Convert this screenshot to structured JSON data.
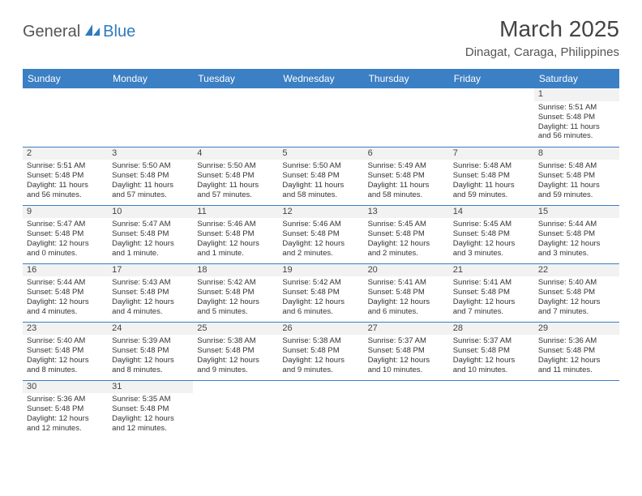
{
  "logo": {
    "general": "General",
    "blue": "Blue"
  },
  "title": "March 2025",
  "location": "Dinagat, Caraga, Philippines",
  "weekdays": [
    "Sunday",
    "Monday",
    "Tuesday",
    "Wednesday",
    "Thursday",
    "Friday",
    "Saturday"
  ],
  "colors": {
    "header_bg": "#3b7fc4",
    "header_text": "#ffffff",
    "border": "#3b7fc4",
    "daynum_bg": "#f2f2f2",
    "text": "#333333",
    "logo_blue": "#2f7bbf"
  },
  "typography": {
    "title_fontsize": 28,
    "location_fontsize": 15,
    "weekday_fontsize": 12,
    "cell_fontsize": 9.5,
    "daynum_fontsize": 11
  },
  "weeks": [
    [
      {
        "day": null
      },
      {
        "day": null
      },
      {
        "day": null
      },
      {
        "day": null
      },
      {
        "day": null
      },
      {
        "day": null
      },
      {
        "day": "1",
        "sunrise": "Sunrise: 5:51 AM",
        "sunset": "Sunset: 5:48 PM",
        "daylight1": "Daylight: 11 hours",
        "daylight2": "and 56 minutes."
      }
    ],
    [
      {
        "day": "2",
        "sunrise": "Sunrise: 5:51 AM",
        "sunset": "Sunset: 5:48 PM",
        "daylight1": "Daylight: 11 hours",
        "daylight2": "and 56 minutes."
      },
      {
        "day": "3",
        "sunrise": "Sunrise: 5:50 AM",
        "sunset": "Sunset: 5:48 PM",
        "daylight1": "Daylight: 11 hours",
        "daylight2": "and 57 minutes."
      },
      {
        "day": "4",
        "sunrise": "Sunrise: 5:50 AM",
        "sunset": "Sunset: 5:48 PM",
        "daylight1": "Daylight: 11 hours",
        "daylight2": "and 57 minutes."
      },
      {
        "day": "5",
        "sunrise": "Sunrise: 5:50 AM",
        "sunset": "Sunset: 5:48 PM",
        "daylight1": "Daylight: 11 hours",
        "daylight2": "and 58 minutes."
      },
      {
        "day": "6",
        "sunrise": "Sunrise: 5:49 AM",
        "sunset": "Sunset: 5:48 PM",
        "daylight1": "Daylight: 11 hours",
        "daylight2": "and 58 minutes."
      },
      {
        "day": "7",
        "sunrise": "Sunrise: 5:48 AM",
        "sunset": "Sunset: 5:48 PM",
        "daylight1": "Daylight: 11 hours",
        "daylight2": "and 59 minutes."
      },
      {
        "day": "8",
        "sunrise": "Sunrise: 5:48 AM",
        "sunset": "Sunset: 5:48 PM",
        "daylight1": "Daylight: 11 hours",
        "daylight2": "and 59 minutes."
      }
    ],
    [
      {
        "day": "9",
        "sunrise": "Sunrise: 5:47 AM",
        "sunset": "Sunset: 5:48 PM",
        "daylight1": "Daylight: 12 hours",
        "daylight2": "and 0 minutes."
      },
      {
        "day": "10",
        "sunrise": "Sunrise: 5:47 AM",
        "sunset": "Sunset: 5:48 PM",
        "daylight1": "Daylight: 12 hours",
        "daylight2": "and 1 minute."
      },
      {
        "day": "11",
        "sunrise": "Sunrise: 5:46 AM",
        "sunset": "Sunset: 5:48 PM",
        "daylight1": "Daylight: 12 hours",
        "daylight2": "and 1 minute."
      },
      {
        "day": "12",
        "sunrise": "Sunrise: 5:46 AM",
        "sunset": "Sunset: 5:48 PM",
        "daylight1": "Daylight: 12 hours",
        "daylight2": "and 2 minutes."
      },
      {
        "day": "13",
        "sunrise": "Sunrise: 5:45 AM",
        "sunset": "Sunset: 5:48 PM",
        "daylight1": "Daylight: 12 hours",
        "daylight2": "and 2 minutes."
      },
      {
        "day": "14",
        "sunrise": "Sunrise: 5:45 AM",
        "sunset": "Sunset: 5:48 PM",
        "daylight1": "Daylight: 12 hours",
        "daylight2": "and 3 minutes."
      },
      {
        "day": "15",
        "sunrise": "Sunrise: 5:44 AM",
        "sunset": "Sunset: 5:48 PM",
        "daylight1": "Daylight: 12 hours",
        "daylight2": "and 3 minutes."
      }
    ],
    [
      {
        "day": "16",
        "sunrise": "Sunrise: 5:44 AM",
        "sunset": "Sunset: 5:48 PM",
        "daylight1": "Daylight: 12 hours",
        "daylight2": "and 4 minutes."
      },
      {
        "day": "17",
        "sunrise": "Sunrise: 5:43 AM",
        "sunset": "Sunset: 5:48 PM",
        "daylight1": "Daylight: 12 hours",
        "daylight2": "and 4 minutes."
      },
      {
        "day": "18",
        "sunrise": "Sunrise: 5:42 AM",
        "sunset": "Sunset: 5:48 PM",
        "daylight1": "Daylight: 12 hours",
        "daylight2": "and 5 minutes."
      },
      {
        "day": "19",
        "sunrise": "Sunrise: 5:42 AM",
        "sunset": "Sunset: 5:48 PM",
        "daylight1": "Daylight: 12 hours",
        "daylight2": "and 6 minutes."
      },
      {
        "day": "20",
        "sunrise": "Sunrise: 5:41 AM",
        "sunset": "Sunset: 5:48 PM",
        "daylight1": "Daylight: 12 hours",
        "daylight2": "and 6 minutes."
      },
      {
        "day": "21",
        "sunrise": "Sunrise: 5:41 AM",
        "sunset": "Sunset: 5:48 PM",
        "daylight1": "Daylight: 12 hours",
        "daylight2": "and 7 minutes."
      },
      {
        "day": "22",
        "sunrise": "Sunrise: 5:40 AM",
        "sunset": "Sunset: 5:48 PM",
        "daylight1": "Daylight: 12 hours",
        "daylight2": "and 7 minutes."
      }
    ],
    [
      {
        "day": "23",
        "sunrise": "Sunrise: 5:40 AM",
        "sunset": "Sunset: 5:48 PM",
        "daylight1": "Daylight: 12 hours",
        "daylight2": "and 8 minutes."
      },
      {
        "day": "24",
        "sunrise": "Sunrise: 5:39 AM",
        "sunset": "Sunset: 5:48 PM",
        "daylight1": "Daylight: 12 hours",
        "daylight2": "and 8 minutes."
      },
      {
        "day": "25",
        "sunrise": "Sunrise: 5:38 AM",
        "sunset": "Sunset: 5:48 PM",
        "daylight1": "Daylight: 12 hours",
        "daylight2": "and 9 minutes."
      },
      {
        "day": "26",
        "sunrise": "Sunrise: 5:38 AM",
        "sunset": "Sunset: 5:48 PM",
        "daylight1": "Daylight: 12 hours",
        "daylight2": "and 9 minutes."
      },
      {
        "day": "27",
        "sunrise": "Sunrise: 5:37 AM",
        "sunset": "Sunset: 5:48 PM",
        "daylight1": "Daylight: 12 hours",
        "daylight2": "and 10 minutes."
      },
      {
        "day": "28",
        "sunrise": "Sunrise: 5:37 AM",
        "sunset": "Sunset: 5:48 PM",
        "daylight1": "Daylight: 12 hours",
        "daylight2": "and 10 minutes."
      },
      {
        "day": "29",
        "sunrise": "Sunrise: 5:36 AM",
        "sunset": "Sunset: 5:48 PM",
        "daylight1": "Daylight: 12 hours",
        "daylight2": "and 11 minutes."
      }
    ],
    [
      {
        "day": "30",
        "sunrise": "Sunrise: 5:36 AM",
        "sunset": "Sunset: 5:48 PM",
        "daylight1": "Daylight: 12 hours",
        "daylight2": "and 12 minutes."
      },
      {
        "day": "31",
        "sunrise": "Sunrise: 5:35 AM",
        "sunset": "Sunset: 5:48 PM",
        "daylight1": "Daylight: 12 hours",
        "daylight2": "and 12 minutes."
      },
      {
        "day": null
      },
      {
        "day": null
      },
      {
        "day": null
      },
      {
        "day": null
      },
      {
        "day": null
      }
    ]
  ]
}
